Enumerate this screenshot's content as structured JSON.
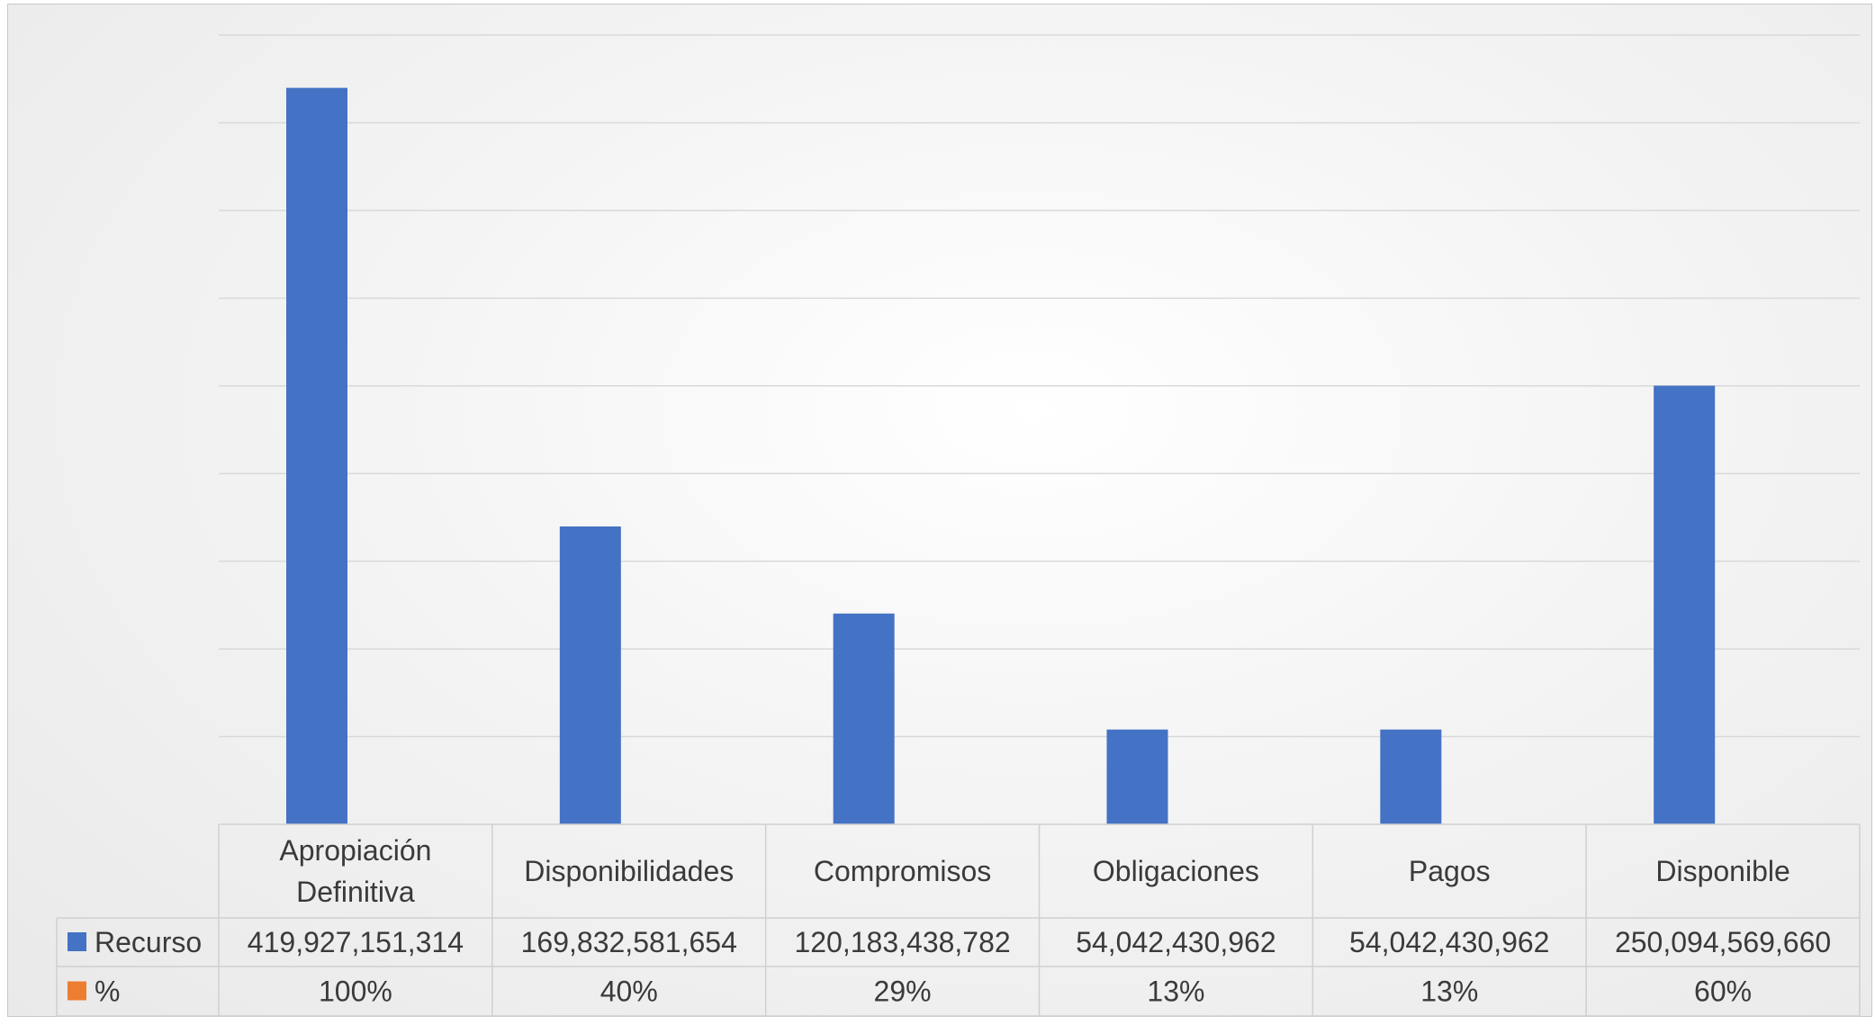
{
  "chart_data": {
    "type": "bar",
    "categories": [
      [
        "Apropiación",
        "Definitiva"
      ],
      [
        "Disponibilidades"
      ],
      [
        "Compromisos"
      ],
      [
        "Obligaciones"
      ],
      [
        "Pagos"
      ],
      [
        "Disponible"
      ]
    ],
    "series": [
      {
        "name": "Recurso",
        "color": "#4472C4",
        "values": [
          419927151314,
          169832581654,
          120183438782,
          54042430962,
          54042430962,
          250094569660
        ],
        "labels": [
          "419,927,151,314",
          "169,832,581,654",
          "120,183,438,782",
          "54,042,430,962",
          "54,042,430,962",
          "250,094,569,660"
        ]
      },
      {
        "name": "%",
        "color": "#ED7D31",
        "values": [
          100,
          40,
          29,
          13,
          13,
          60
        ],
        "labels": [
          "100%",
          "40%",
          "29%",
          "13%",
          "13%",
          "60%"
        ]
      }
    ],
    "ylim": [
      0,
      450000000000
    ],
    "gridlines": 9,
    "grid": true,
    "legend": "data-table"
  }
}
